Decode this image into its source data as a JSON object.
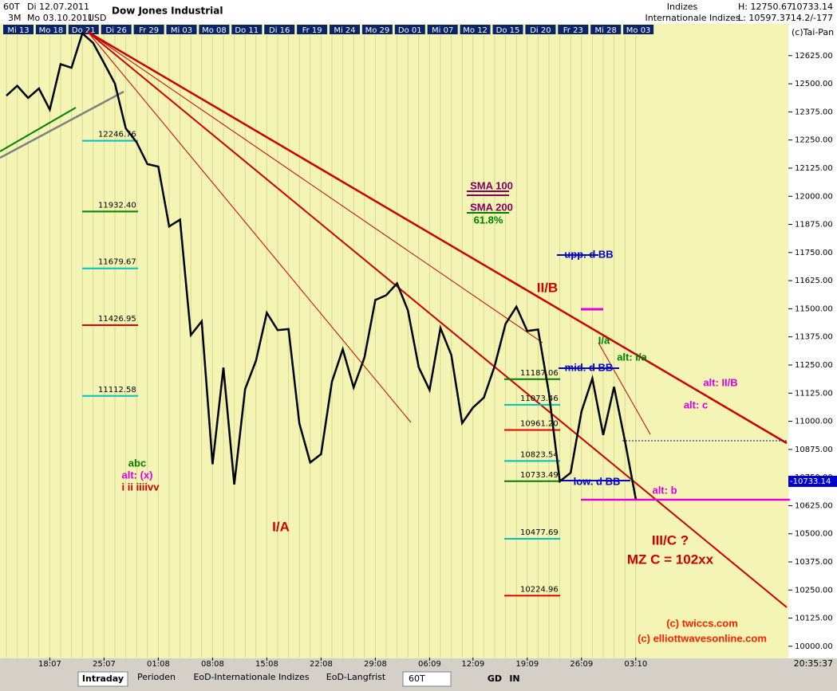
{
  "header": {
    "period": "60T",
    "start": "Di 12.07.2011",
    "range": "3M",
    "end": "Mo 03.10.2011",
    "currency": "USD",
    "title": "Dow Jones Industrial",
    "group": "Indizes",
    "subgroup": "Internationale Indizes",
    "high": "H: 12750.67",
    "low": "L: 10597.37",
    "last": "10733.14",
    "change": "-14.2/-177",
    "copyright": "(c)Tai-Pan",
    "clock": "20:35:37"
  },
  "date_tabs": [
    "Mi 13",
    "Mo 18",
    "Do 21",
    "Di 26",
    "Fr 29",
    "Mi 03",
    "Mo 08",
    "Do 11",
    "Di 16",
    "Fr 19",
    "Mi 24",
    "Mo 29",
    "Do 01",
    "Mi 07",
    "Mo 12",
    "Do 15",
    "Di 20",
    "Fr 23",
    "Mi 28",
    "Mo 03"
  ],
  "chart_data": {
    "type": "line",
    "color": "#000000",
    "grid": "x",
    "categories": [
      null,
      null,
      null,
      null,
      "18:07",
      null,
      null,
      null,
      null,
      "25:07",
      null,
      null,
      null,
      null,
      "01:08",
      null,
      null,
      null,
      null,
      "08:08",
      null,
      null,
      null,
      null,
      "15:08",
      null,
      null,
      null,
      null,
      "22:08",
      null,
      null,
      null,
      null,
      "29:08",
      null,
      null,
      null,
      null,
      "06:09",
      null,
      null,
      null,
      "12:09",
      null,
      null,
      null,
      null,
      "19:09",
      null,
      null,
      null,
      null,
      "26:09",
      null,
      null,
      null,
      null,
      "03:10"
    ],
    "values": [
      12447,
      12491,
      12437,
      12479,
      12385,
      12587,
      12571,
      12724,
      12681,
      12592,
      12501,
      12302,
      12240,
      12143,
      12132,
      11866,
      11896,
      11383,
      11444,
      10809,
      11239,
      10719,
      11143,
      11269,
      11482,
      11405,
      11410,
      10990,
      10817,
      10854,
      11176,
      11320,
      11150,
      11284,
      11539,
      11560,
      11613,
      11493,
      11240,
      11139,
      11414,
      11295,
      10992,
      11061,
      11105,
      11246,
      11433,
      11509,
      11401,
      11408,
      11124,
      10733,
      10771,
      11044,
      11190,
      10939,
      11153,
      10913,
      10655
    ],
    "ylim": [
      9950,
      12766
    ],
    "yticks": [
      {
        "value": 10000,
        "label": "10000.00"
      },
      {
        "value": 10125,
        "label": "10125.00"
      },
      {
        "value": 10250,
        "label": "10250.00"
      },
      {
        "value": 10375,
        "label": "10375.00"
      },
      {
        "value": 10500,
        "label": "10500.00"
      },
      {
        "value": 10625,
        "label": "10625.00"
      },
      {
        "value": 10750,
        "label": "10750.00"
      },
      {
        "value": 10875,
        "label": "10875.00"
      },
      {
        "value": 11000,
        "label": "11000.00"
      },
      {
        "value": 11125,
        "label": "11125.00"
      },
      {
        "value": 11250,
        "label": "11250.00"
      },
      {
        "value": 11375,
        "label": "11375.00"
      },
      {
        "value": 11500,
        "label": "11500.00"
      },
      {
        "value": 11625,
        "label": "11625.00"
      },
      {
        "value": 11750,
        "label": "11750.00"
      },
      {
        "value": 11875,
        "label": "11875.00"
      },
      {
        "value": 12000,
        "label": "12000.00"
      },
      {
        "value": 12125,
        "label": "12125.00"
      },
      {
        "value": 12250,
        "label": "12250.00"
      },
      {
        "value": 12375,
        "label": "12375.00"
      },
      {
        "value": 12500,
        "label": "12500.00"
      },
      {
        "value": 12625,
        "label": "12625.00"
      }
    ],
    "last_price": {
      "value": 10733.14,
      "label": "-10733.14"
    },
    "fib_left": [
      {
        "value": 12246.76,
        "label": "12246.76",
        "color": "#00c0c0"
      },
      {
        "value": 11932.4,
        "label": "11932.40",
        "color": "#008000"
      },
      {
        "value": 11679.67,
        "label": "11679.67",
        "color": "#00c0c0"
      },
      {
        "value": 11426.95,
        "label": "11426.95",
        "color": "#e00000"
      },
      {
        "value": 11112.58,
        "label": "11112.58",
        "color": "#00c0c0"
      }
    ],
    "fib_right": [
      {
        "value": 11187.06,
        "label": "11187.06",
        "color": "#008000"
      },
      {
        "value": 11073.46,
        "label": "11073.46",
        "color": "#00c0c0"
      },
      {
        "value": 10961.2,
        "label": "10961.20",
        "color": "#e00000"
      },
      {
        "value": 10823.54,
        "label": "10823.54",
        "color": "#00c0c0"
      },
      {
        "value": 10733.49,
        "label": "10733.49",
        "color": "#008000"
      },
      {
        "value": 10477.69,
        "label": "10477.69",
        "color": "#00c0c0"
      },
      {
        "value": 10224.96,
        "label": "10224.96",
        "color": "#e00000"
      }
    ],
    "annotations": {
      "ia": "I/A",
      "iib": "II/B",
      "iiic": "III/C ?",
      "mz": "MZ C = 102xx",
      "sma100": "SMA 100",
      "sma200": "SMA 200",
      "fib618": "61.8%",
      "uppbb": "upp. d BB",
      "midbb": "mid. d BB",
      "lowbb": "low. d BB",
      "alt_iib": "alt: II/B",
      "alt_c": "alt: c",
      "alt_b": "alt: b",
      "alt_ia": "alt: I/a",
      "ia_small": "I/a",
      "abc": "abc",
      "alt_x": "alt: (x)",
      "waves": "i ii iiiivv",
      "credit1": "(c) twiccs.com",
      "credit2": "(c) elliottwavesonline.com"
    }
  },
  "toolbar": {
    "tab1": "Intraday",
    "tab2": "Perioden",
    "tab3": "EoD-Internationale Indizes",
    "tab4": "EoD-Langfrist",
    "interval": "60T",
    "gd": "GD",
    "in": "IN"
  }
}
